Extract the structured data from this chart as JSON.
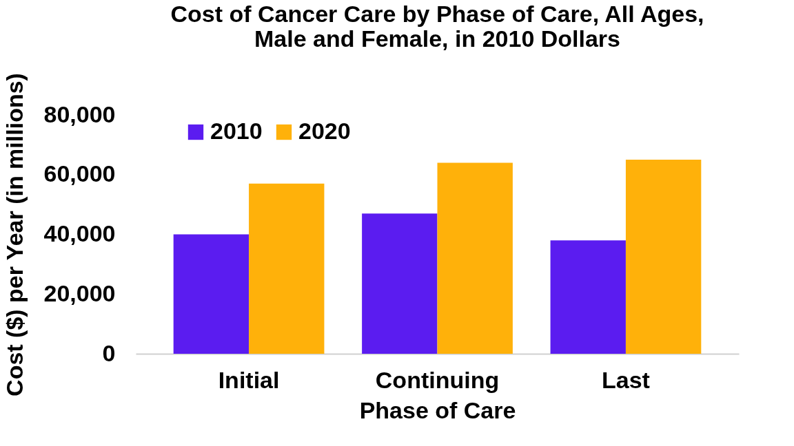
{
  "chart_data": {
    "type": "bar",
    "title": [
      "Cost of Cancer Care by Phase of Care, All Ages,",
      "Male and Female, in 2010 Dollars"
    ],
    "xlabel": "Phase of Care",
    "ylabel": "Cost ($) per Year (in millions)",
    "categories": [
      "Initial",
      "Continuing",
      "Last"
    ],
    "series": [
      {
        "name": "2010",
        "color": "#5b1cf0",
        "values": [
          40000,
          47000,
          38000
        ]
      },
      {
        "name": "2020",
        "color": "#ffb10a",
        "values": [
          57000,
          64000,
          65000
        ]
      }
    ],
    "ylim": [
      0,
      80000
    ],
    "yticks": [
      {
        "value": 0,
        "label": "0"
      },
      {
        "value": 20000,
        "label": "20,000"
      },
      {
        "value": 40000,
        "label": "40,000"
      },
      {
        "value": 60000,
        "label": "60,000"
      },
      {
        "value": 80000,
        "label": "80,000"
      }
    ],
    "grid": false,
    "legend": "top left"
  }
}
